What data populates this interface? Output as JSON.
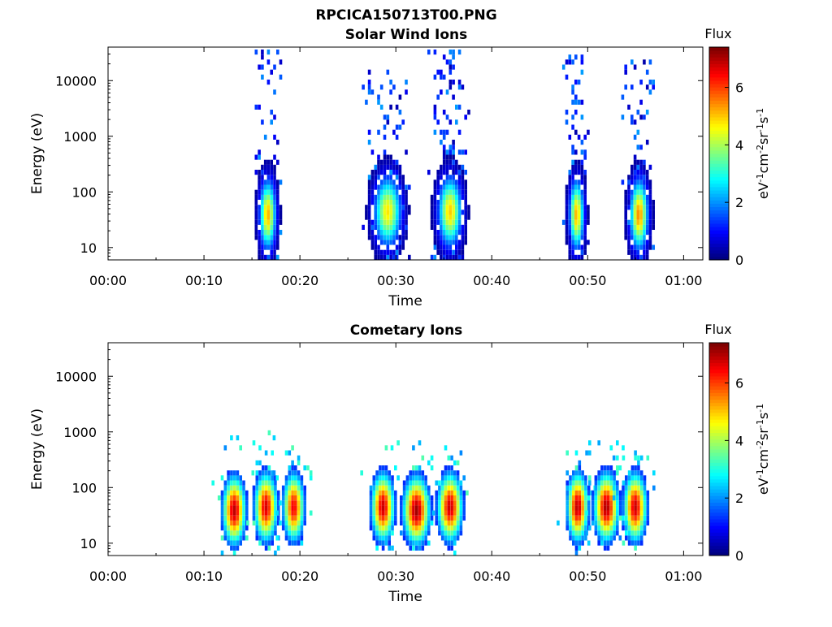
{
  "figure": {
    "main_title": "RPCICA150713T00.PNG"
  },
  "colormap": "jet",
  "chart_data": [
    {
      "type": "heatmap",
      "title": "Solar Wind Ions",
      "xlabel": "Time",
      "ylabel": "Energy (eV)",
      "xticks": [
        "00:00",
        "00:10",
        "00:20",
        "00:30",
        "00:40",
        "00:50",
        "01:00"
      ],
      "xlim_minutes": [
        0,
        62
      ],
      "yscale": "log",
      "ylim_eV": [
        6,
        40000
      ],
      "yticks": [
        10,
        100,
        1000,
        10000
      ],
      "ytick_labels": [
        "10",
        "100",
        "1000",
        "10000"
      ],
      "colorbar": {
        "title": "Flux",
        "label": "eV-1cm-2sr-1s-1",
        "label_parts": [
          [
            "eV",
            "-1"
          ],
          [
            "cm",
            "-2"
          ],
          [
            "sr",
            "-1"
          ],
          [
            "s",
            "-1"
          ]
        ],
        "range": [
          0,
          7.4
        ],
        "ticks": [
          0,
          2,
          4,
          6
        ],
        "tick_labels": [
          "0",
          "2",
          "4",
          "6"
        ]
      },
      "bursts": [
        {
          "t": 16.5,
          "w": 0.9,
          "peak": 5.2,
          "peakE": 35,
          "topE": 30000,
          "halo": true,
          "spread": 3.0
        },
        {
          "t": 29.0,
          "w": 1.5,
          "peak": 4.8,
          "peakE": 40,
          "topE": 15000,
          "halo": true,
          "spread": 3.0
        },
        {
          "t": 35.5,
          "w": 1.3,
          "peak": 5.0,
          "peakE": 40,
          "topE": 30000,
          "halo": true,
          "spread": 3.0
        },
        {
          "t": 48.7,
          "w": 0.8,
          "peak": 5.2,
          "peakE": 35,
          "topE": 30000,
          "halo": true,
          "spread": 3.0
        },
        {
          "t": 55.2,
          "w": 1.0,
          "peak": 5.5,
          "peakE": 35,
          "topE": 20000,
          "halo": true,
          "spread": 3.0
        }
      ]
    },
    {
      "type": "heatmap",
      "title": "Cometary Ions",
      "xlabel": "Time",
      "ylabel": "Energy (eV)",
      "xticks": [
        "00:00",
        "00:10",
        "00:20",
        "00:30",
        "00:40",
        "00:50",
        "01:00"
      ],
      "xlim_minutes": [
        0,
        62
      ],
      "yscale": "log",
      "ylim_eV": [
        6,
        40000
      ],
      "yticks": [
        10,
        100,
        1000,
        10000
      ],
      "ytick_labels": [
        "10",
        "100",
        "1000",
        "10000"
      ],
      "colorbar": {
        "title": "Flux",
        "label": "eV-1cm-2sr-1s-1",
        "label_parts": [
          [
            "eV",
            "-1"
          ],
          [
            "cm",
            "-2"
          ],
          [
            "sr",
            "-1"
          ],
          [
            "s",
            "-1"
          ]
        ],
        "range": [
          0,
          7.4
        ],
        "ticks": [
          0,
          2,
          4,
          6
        ],
        "tick_labels": [
          "0",
          "2",
          "4",
          "6"
        ]
      },
      "bursts": [
        {
          "t": 13.0,
          "w": 1.3,
          "peak": 7.0,
          "peakE": 35,
          "topE": 1200,
          "halo": false,
          "spread": 1.0
        },
        {
          "t": 16.3,
          "w": 1.3,
          "peak": 6.8,
          "peakE": 40,
          "topE": 900,
          "halo": false,
          "spread": 1.0
        },
        {
          "t": 19.2,
          "w": 1.2,
          "peak": 6.6,
          "peakE": 40,
          "topE": 800,
          "halo": false,
          "spread": 1.0
        },
        {
          "t": 28.5,
          "w": 1.3,
          "peak": 6.9,
          "peakE": 40,
          "topE": 500,
          "halo": false,
          "spread": 1.0
        },
        {
          "t": 32.0,
          "w": 1.5,
          "peak": 7.2,
          "peakE": 35,
          "topE": 600,
          "halo": false,
          "spread": 1.0
        },
        {
          "t": 35.5,
          "w": 1.4,
          "peak": 6.9,
          "peakE": 40,
          "topE": 500,
          "halo": false,
          "spread": 1.0
        },
        {
          "t": 48.8,
          "w": 1.2,
          "peak": 7.0,
          "peakE": 40,
          "topE": 700,
          "halo": false,
          "spread": 1.0
        },
        {
          "t": 51.8,
          "w": 1.4,
          "peak": 7.1,
          "peakE": 40,
          "topE": 600,
          "halo": false,
          "spread": 1.0
        },
        {
          "t": 54.8,
          "w": 1.3,
          "peak": 6.9,
          "peakE": 40,
          "topE": 500,
          "halo": false,
          "spread": 1.0
        }
      ]
    }
  ]
}
